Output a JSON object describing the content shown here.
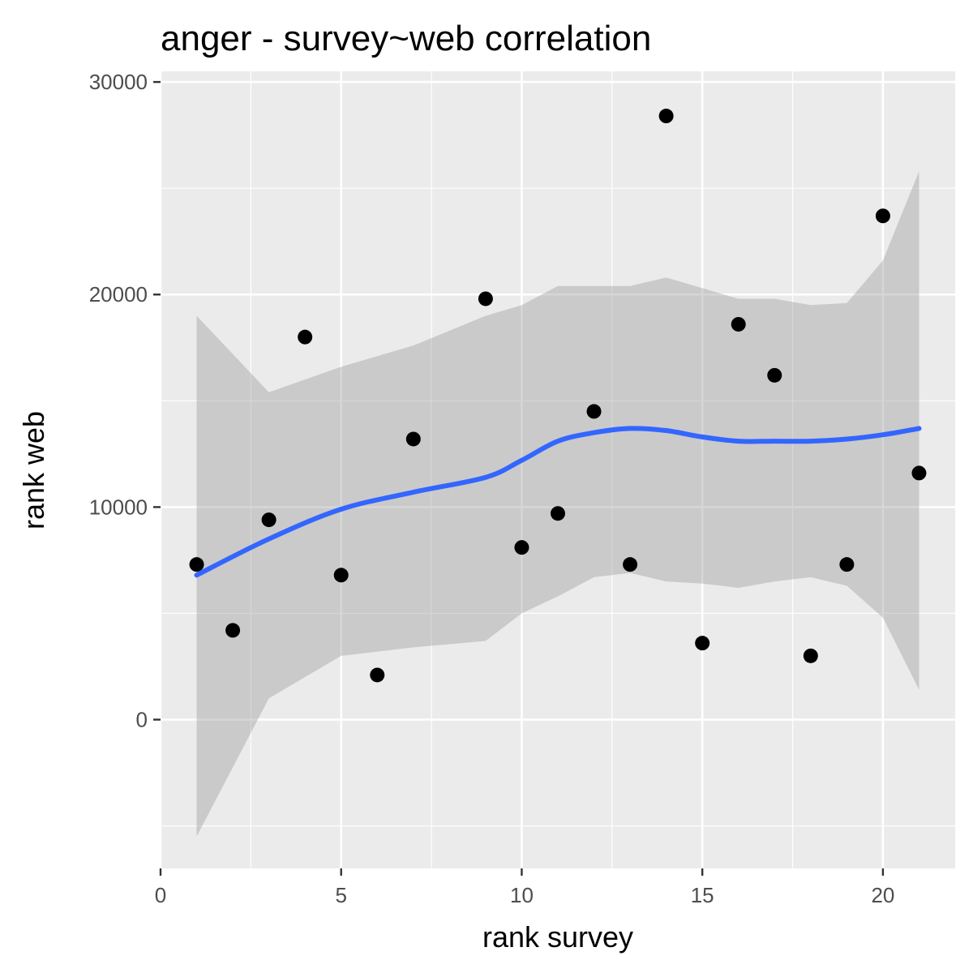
{
  "chart_data": {
    "type": "scatter",
    "title": "anger - survey~web correlation",
    "xlabel": "rank survey",
    "ylabel": "rank web",
    "xlim": [
      0,
      22
    ],
    "ylim": [
      -7000,
      30500
    ],
    "x_ticks": [
      0,
      5,
      10,
      15,
      20
    ],
    "y_ticks": [
      0,
      10000,
      20000,
      30000
    ],
    "x_minor": [
      2.5,
      7.5,
      12.5,
      17.5
    ],
    "y_minor": [
      -5000,
      5000,
      15000,
      25000
    ],
    "grid": true,
    "legend": "none",
    "points": [
      {
        "x": 1,
        "y": 7300
      },
      {
        "x": 2,
        "y": 4200
      },
      {
        "x": 3,
        "y": 9400
      },
      {
        "x": 4,
        "y": 18000
      },
      {
        "x": 5,
        "y": 6800
      },
      {
        "x": 6,
        "y": 2100
      },
      {
        "x": 7,
        "y": 13200
      },
      {
        "x": 9,
        "y": 19800
      },
      {
        "x": 10,
        "y": 8100
      },
      {
        "x": 11,
        "y": 9700
      },
      {
        "x": 12,
        "y": 14500
      },
      {
        "x": 13,
        "y": 7300
      },
      {
        "x": 14,
        "y": 28400
      },
      {
        "x": 15,
        "y": 3600
      },
      {
        "x": 16,
        "y": 18600
      },
      {
        "x": 17,
        "y": 16200
      },
      {
        "x": 18,
        "y": 3000
      },
      {
        "x": 19,
        "y": 7300
      },
      {
        "x": 20,
        "y": 23700
      },
      {
        "x": 21,
        "y": 11600
      }
    ],
    "smooth": {
      "method": "loess",
      "x": [
        1,
        3,
        5,
        7,
        9,
        10,
        11,
        12,
        13,
        14,
        15,
        16,
        17,
        18,
        19,
        20,
        21
      ],
      "y": [
        6800,
        8500,
        9900,
        10700,
        11400,
        12200,
        13100,
        13500,
        13700,
        13600,
        13300,
        13100,
        13100,
        13100,
        13200,
        13400,
        13700
      ],
      "lower": [
        -5500,
        1000,
        3000,
        3400,
        3700,
        5000,
        5800,
        6700,
        6900,
        6500,
        6400,
        6200,
        6500,
        6700,
        6300,
        4800,
        1400
      ],
      "upper": [
        19000,
        15400,
        16600,
        17600,
        19000,
        19500,
        20400,
        20400,
        20400,
        20800,
        20300,
        19800,
        19800,
        19500,
        19600,
        21600,
        25800
      ]
    },
    "colors": {
      "panel": "#ebebeb",
      "grid": "#ffffff",
      "point": "#000000",
      "smooth_line": "#3366ff",
      "ribbon": "#999999"
    }
  }
}
